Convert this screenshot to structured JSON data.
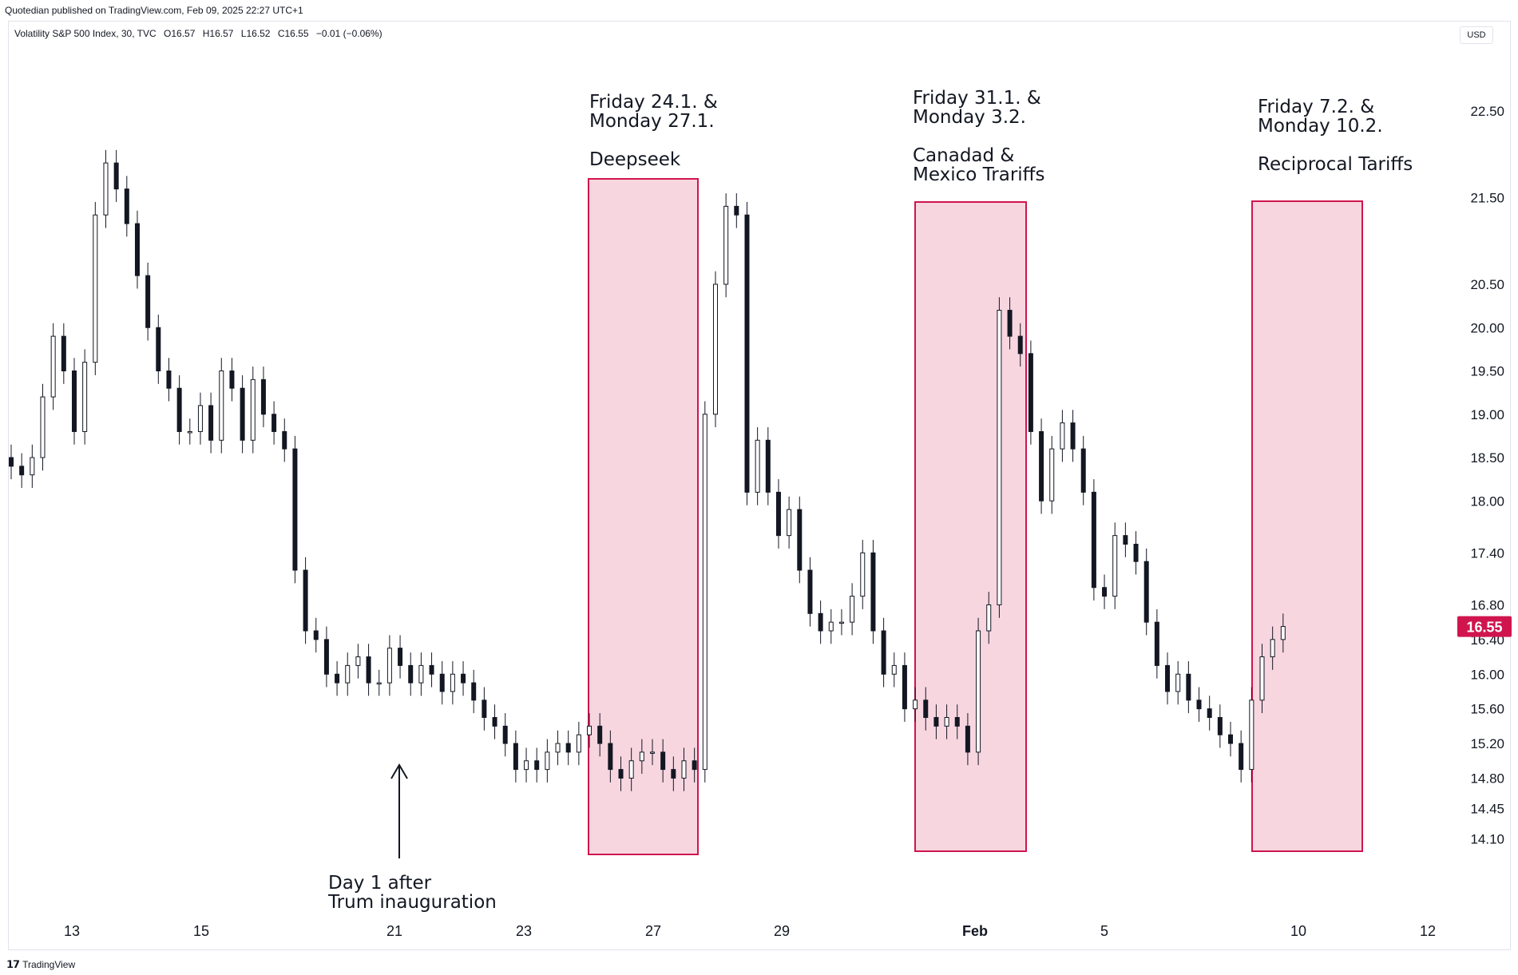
{
  "header": {
    "published": "Quotedian published on TradingView.com, Feb 09, 2025 22:27 UTC+1"
  },
  "legend": {
    "symbol": "Volatility S&P 500 Index, 30, TVC",
    "open": "O16.57",
    "high": "H16.57",
    "low": "L16.52",
    "close": "C16.55",
    "change": "−0.01 (−0.06%)"
  },
  "currency": "USD",
  "footer": {
    "brand": "TradingView"
  },
  "colors": {
    "candle": "#131722",
    "wick": "#131722",
    "highlight_fill": "#f7d6e0",
    "highlight_stroke": "#d0154e",
    "price_badge": "#d0154e"
  },
  "chart_data": {
    "type": "candlestick",
    "y_axis_side": "right",
    "ylim": [
      13.9,
      23.2
    ],
    "y_ticks": [
      "22.50",
      "21.50",
      "20.50",
      "20.00",
      "19.50",
      "19.00",
      "18.50",
      "18.00",
      "17.40",
      "16.80",
      "16.40",
      "16.00",
      "15.60",
      "15.20",
      "14.80",
      "14.45",
      "14.10"
    ],
    "x_ticks": [
      "13",
      "15",
      "21",
      "23",
      "27",
      "29",
      "Feb",
      "5",
      "10",
      "12"
    ],
    "last_price": "16.55",
    "grid": false,
    "series": [
      {
        "name": "Volatility S&P 500 Index",
        "close": [
          18.4,
          18.3,
          18.5,
          19.2,
          19.9,
          19.5,
          18.8,
          19.6,
          21.3,
          21.9,
          21.6,
          21.2,
          20.6,
          20.0,
          19.5,
          19.3,
          18.8,
          18.8,
          19.1,
          18.7,
          19.5,
          19.3,
          18.7,
          19.4,
          19.0,
          18.8,
          18.6,
          17.2,
          16.5,
          16.4,
          16.0,
          15.9,
          16.1,
          16.2,
          15.9,
          15.9,
          16.3,
          16.1,
          15.9,
          16.1,
          16.0,
          15.8,
          16.0,
          15.9,
          15.7,
          15.5,
          15.4,
          15.2,
          14.9,
          15.0,
          14.9,
          15.1,
          15.2,
          15.1,
          15.3,
          15.4,
          15.2,
          14.9,
          14.8,
          15.0,
          15.1,
          15.1,
          14.9,
          14.8,
          15.0,
          14.9,
          19.0,
          20.5,
          21.4,
          21.3,
          18.1,
          18.7,
          18.1,
          17.6,
          17.9,
          17.2,
          16.7,
          16.5,
          16.6,
          16.6,
          16.9,
          17.4,
          16.5,
          16.0,
          16.1,
          15.6,
          15.7,
          15.5,
          15.4,
          15.5,
          15.4,
          15.1,
          16.5,
          16.8,
          20.2,
          19.9,
          19.7,
          18.8,
          18.0,
          18.6,
          18.9,
          18.6,
          18.1,
          17.0,
          16.9,
          17.6,
          17.5,
          17.3,
          16.6,
          16.1,
          15.8,
          16.0,
          15.7,
          15.6,
          15.5,
          15.3,
          15.2,
          14.9,
          15.7,
          16.2,
          16.4,
          16.55
        ]
      }
    ],
    "highlight_boxes": [
      {
        "x_range": [
          "Jan 24",
          "Jan 27"
        ]
      },
      {
        "x_range": [
          "Jan 31",
          "Feb 3"
        ]
      },
      {
        "x_range": [
          "Feb 7",
          "Feb 10"
        ]
      }
    ],
    "annotations": [
      {
        "lines": [
          "Friday 24.1. &",
          "Monday 27.1.",
          "",
          "Deepseek"
        ]
      },
      {
        "lines": [
          "Friday 31.1. &",
          "Monday 3.2.",
          "",
          "Canadad &",
          "Mexico Trariffs"
        ]
      },
      {
        "lines": [
          "Friday 7.2. &",
          "Monday 10.2.",
          "",
          "Reciprocal Tariffs"
        ]
      },
      {
        "lines": [
          "Day 1 after",
          "Trum inauguration"
        ]
      }
    ]
  }
}
